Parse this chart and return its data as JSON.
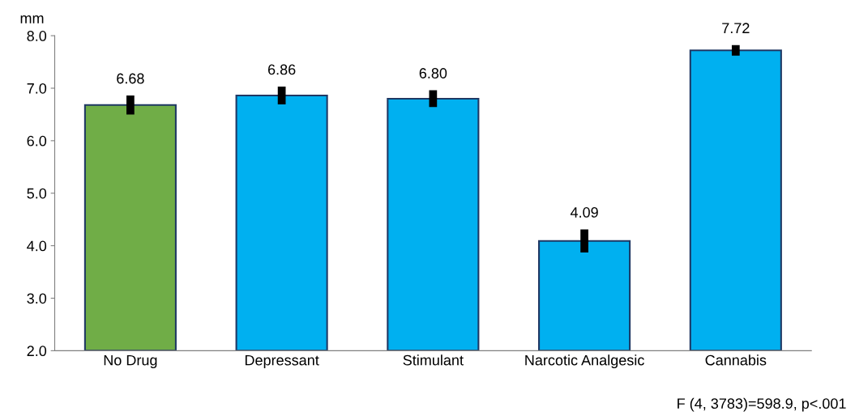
{
  "chart_data": {
    "type": "bar",
    "ylabel": "mm",
    "categories": [
      "No Drug",
      "Depressant",
      "Stimulant",
      "Narcotic Analgesic",
      "Cannabis"
    ],
    "values": [
      6.68,
      6.86,
      6.8,
      4.09,
      7.72
    ],
    "colors": [
      "#70ad47",
      "#00b0f0",
      "#00b0f0",
      "#00b0f0",
      "#00b0f0"
    ],
    "errors": [
      0.18,
      0.17,
      0.16,
      0.22,
      0.1
    ],
    "value_labels": [
      "6.68",
      "6.86",
      "6.80",
      "4.09",
      "7.72"
    ],
    "ylim": [
      2.0,
      8.0
    ],
    "yticks": [
      {
        "value": 2,
        "label": "2.0"
      },
      {
        "value": 3,
        "label": "3.0"
      },
      {
        "value": 4,
        "label": "4.0"
      },
      {
        "value": 5,
        "label": "5.0"
      },
      {
        "value": 6,
        "label": "6.0"
      },
      {
        "value": 7,
        "label": "7.0"
      },
      {
        "value": 8,
        "label": "8.0"
      }
    ],
    "grid": false,
    "annotations": [
      "F (4, 3783)=598.9, p<.001"
    ]
  }
}
